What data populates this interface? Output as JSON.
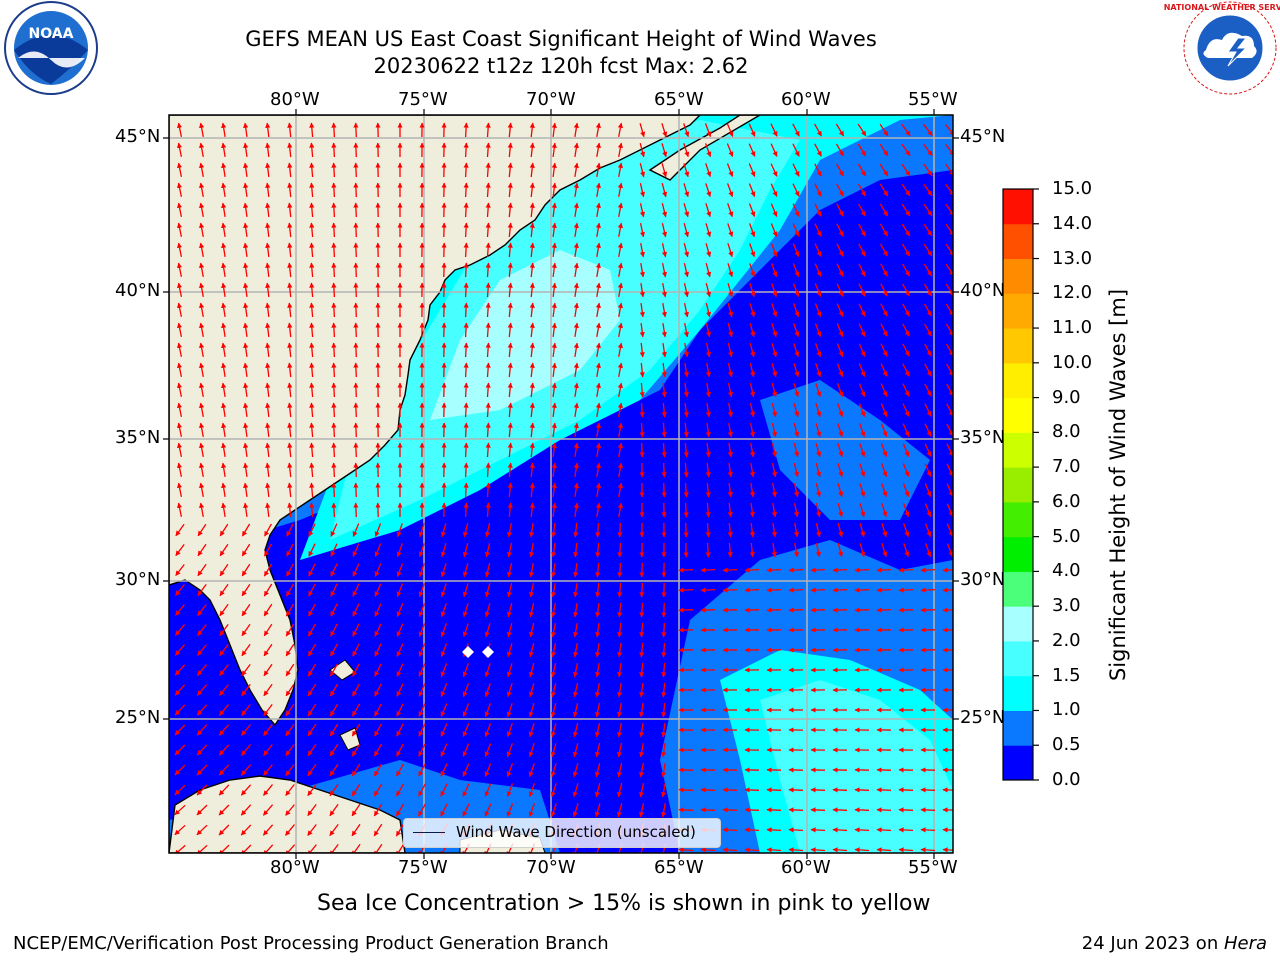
{
  "title": {
    "line1": "GEFS MEAN US East Coast Significant Height of Wind Waves",
    "line2": "20230622 t12z 120h fcst   Max: 2.62"
  },
  "map": {
    "lon_range": [
      -85,
      -54.5
    ],
    "lat_range": [
      20.3,
      45.8
    ],
    "lon_ticks": [
      "80°W",
      "75°W",
      "70°W",
      "65°W",
      "60°W",
      "55°W"
    ],
    "lat_ticks": [
      "45°N",
      "40°N",
      "35°N",
      "30°N",
      "25°N"
    ],
    "grid": true,
    "land_color": "#efeedd",
    "arrow_color": "#ff0000"
  },
  "colorbar": {
    "label": "Significant Height of Wind Waves [m]",
    "ticks": [
      "0.0",
      "0.5",
      "1.0",
      "1.5",
      "2.0",
      "3.0",
      "4.0",
      "5.0",
      "6.0",
      "7.0",
      "8.0",
      "9.0",
      "10.0",
      "11.0",
      "12.0",
      "13.0",
      "14.0",
      "15.0"
    ],
    "colors": [
      "#0000ff",
      "#0a78ff",
      "#00ffff",
      "#48ffff",
      "#a8ffff",
      "#4cff7a",
      "#00ee00",
      "#44ee00",
      "#99ee00",
      "#ccff00",
      "#ffff00",
      "#ffee00",
      "#ffc800",
      "#ffaa00",
      "#ff8c00",
      "#ff5000",
      "#ff1000"
    ]
  },
  "legend": {
    "label": "Wind Wave Direction (unscaled)"
  },
  "ice_note": "Sea Ice Concentration > 15% is shown in pink to yellow",
  "credit": "NCEP/EMC/Verification Post Processing Product Generation Branch",
  "stamp": {
    "date": "24 Jun 2023 on ",
    "machine": "Hera"
  },
  "logos": {
    "left": "NOAA",
    "right": "NATIONAL WEATHER SERVICE"
  }
}
